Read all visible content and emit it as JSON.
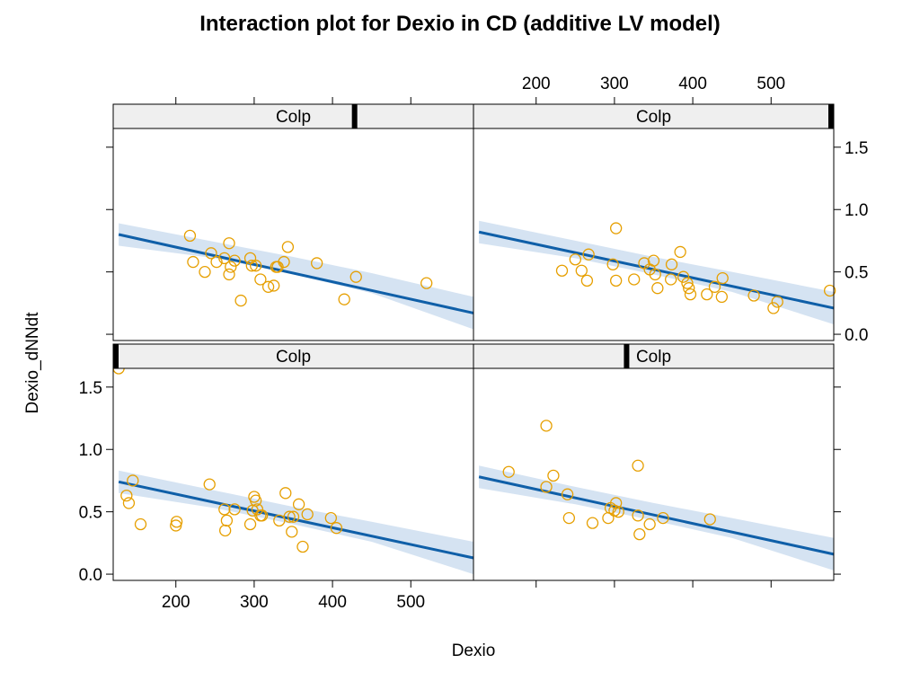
{
  "chart_data": {
    "type": "scatter",
    "title": "Interaction plot for Dexio in CD (additive LV model)",
    "xlabel": "Dexio",
    "ylabel": "Dexio_dNNdt",
    "xlim": [
      120,
      580
    ],
    "ylim": [
      -0.05,
      1.65
    ],
    "x_ticks": [
      200,
      300,
      400,
      500
    ],
    "y_ticks": [
      0.0,
      0.5,
      1.0,
      1.5
    ],
    "colors": {
      "points": "#E69F00",
      "line": "#0F5FA8",
      "band": "#C7DAEE",
      "strip": "#EFEFEF",
      "strip_marker": "#000000"
    },
    "panels": [
      {
        "id": "top-left",
        "strip_label": "Colp",
        "strip_marker_fraction": 0.67,
        "fit": {
          "x": [
            127,
            580
          ],
          "y": [
            0.8,
            0.17
          ]
        },
        "band": {
          "x": [
            127,
            250,
            350,
            450,
            580
          ],
          "upper": [
            0.89,
            0.74,
            0.62,
            0.49,
            0.3
          ],
          "lower": [
            0.71,
            0.61,
            0.48,
            0.33,
            0.04
          ]
        },
        "points": [
          [
            218,
            0.79
          ],
          [
            222,
            0.58
          ],
          [
            237,
            0.5
          ],
          [
            245,
            0.65
          ],
          [
            252,
            0.58
          ],
          [
            262,
            0.61
          ],
          [
            268,
            0.73
          ],
          [
            268,
            0.48
          ],
          [
            270,
            0.54
          ],
          [
            275,
            0.59
          ],
          [
            283,
            0.27
          ],
          [
            295,
            0.61
          ],
          [
            297,
            0.55
          ],
          [
            302,
            0.55
          ],
          [
            308,
            0.44
          ],
          [
            318,
            0.38
          ],
          [
            325,
            0.39
          ],
          [
            328,
            0.54
          ],
          [
            330,
            0.54
          ],
          [
            338,
            0.58
          ],
          [
            343,
            0.7
          ],
          [
            380,
            0.57
          ],
          [
            415,
            0.28
          ],
          [
            430,
            0.46
          ],
          [
            520,
            0.41
          ]
        ]
      },
      {
        "id": "top-right",
        "strip_label": "Colp",
        "strip_marker_fraction": 1.0,
        "fit": {
          "x": [
            127,
            580
          ],
          "y": [
            0.82,
            0.21
          ]
        },
        "band": {
          "x": [
            127,
            250,
            350,
            450,
            580
          ],
          "upper": [
            0.91,
            0.75,
            0.62,
            0.5,
            0.34
          ],
          "lower": [
            0.73,
            0.61,
            0.48,
            0.34,
            0.08
          ]
        },
        "points": [
          [
            233,
            0.51
          ],
          [
            250,
            0.6
          ],
          [
            258,
            0.51
          ],
          [
            265,
            0.43
          ],
          [
            267,
            0.64
          ],
          [
            298,
            0.56
          ],
          [
            302,
            0.85
          ],
          [
            302,
            0.43
          ],
          [
            325,
            0.44
          ],
          [
            338,
            0.57
          ],
          [
            345,
            0.52
          ],
          [
            350,
            0.59
          ],
          [
            352,
            0.48
          ],
          [
            355,
            0.37
          ],
          [
            372,
            0.44
          ],
          [
            373,
            0.56
          ],
          [
            384,
            0.66
          ],
          [
            388,
            0.46
          ],
          [
            393,
            0.41
          ],
          [
            395,
            0.37
          ],
          [
            397,
            0.32
          ],
          [
            418,
            0.32
          ],
          [
            428,
            0.38
          ],
          [
            437,
            0.3
          ],
          [
            438,
            0.45
          ],
          [
            478,
            0.31
          ],
          [
            503,
            0.21
          ],
          [
            508,
            0.26
          ],
          [
            575,
            0.35
          ]
        ]
      },
      {
        "id": "bottom-left",
        "strip_label": "Colp",
        "strip_marker_fraction": 0.0,
        "fit": {
          "x": [
            127,
            580
          ],
          "y": [
            0.74,
            0.13
          ]
        },
        "band": {
          "x": [
            127,
            250,
            350,
            450,
            580
          ],
          "upper": [
            0.83,
            0.67,
            0.54,
            0.42,
            0.26
          ],
          "lower": [
            0.65,
            0.53,
            0.4,
            0.26,
            0.0
          ]
        },
        "points": [
          [
            127,
            1.65
          ],
          [
            137,
            0.63
          ],
          [
            140,
            0.57
          ],
          [
            145,
            0.75
          ],
          [
            155,
            0.4
          ],
          [
            200,
            0.39
          ],
          [
            201,
            0.42
          ],
          [
            243,
            0.72
          ],
          [
            262,
            0.52
          ],
          [
            263,
            0.35
          ],
          [
            265,
            0.43
          ],
          [
            275,
            0.52
          ],
          [
            295,
            0.4
          ],
          [
            298,
            0.51
          ],
          [
            300,
            0.62
          ],
          [
            302,
            0.59
          ],
          [
            304,
            0.52
          ],
          [
            308,
            0.47
          ],
          [
            310,
            0.47
          ],
          [
            332,
            0.43
          ],
          [
            340,
            0.65
          ],
          [
            345,
            0.46
          ],
          [
            348,
            0.34
          ],
          [
            350,
            0.46
          ],
          [
            357,
            0.56
          ],
          [
            362,
            0.22
          ],
          [
            368,
            0.48
          ],
          [
            398,
            0.45
          ],
          [
            405,
            0.37
          ]
        ]
      },
      {
        "id": "bottom-right",
        "strip_label": "Colp",
        "strip_marker_fraction": 0.425,
        "fit": {
          "x": [
            127,
            580
          ],
          "y": [
            0.78,
            0.16
          ]
        },
        "band": {
          "x": [
            127,
            250,
            350,
            450,
            580
          ],
          "upper": [
            0.87,
            0.7,
            0.57,
            0.45,
            0.29
          ],
          "lower": [
            0.69,
            0.56,
            0.43,
            0.29,
            0.03
          ]
        },
        "points": [
          [
            165,
            0.82
          ],
          [
            213,
            1.19
          ],
          [
            213,
            0.7
          ],
          [
            222,
            0.79
          ],
          [
            240,
            0.64
          ],
          [
            242,
            0.45
          ],
          [
            272,
            0.41
          ],
          [
            292,
            0.45
          ],
          [
            295,
            0.53
          ],
          [
            300,
            0.51
          ],
          [
            302,
            0.57
          ],
          [
            305,
            0.5
          ],
          [
            330,
            0.87
          ],
          [
            330,
            0.47
          ],
          [
            332,
            0.32
          ],
          [
            345,
            0.4
          ],
          [
            362,
            0.45
          ],
          [
            422,
            0.44
          ]
        ]
      }
    ]
  }
}
